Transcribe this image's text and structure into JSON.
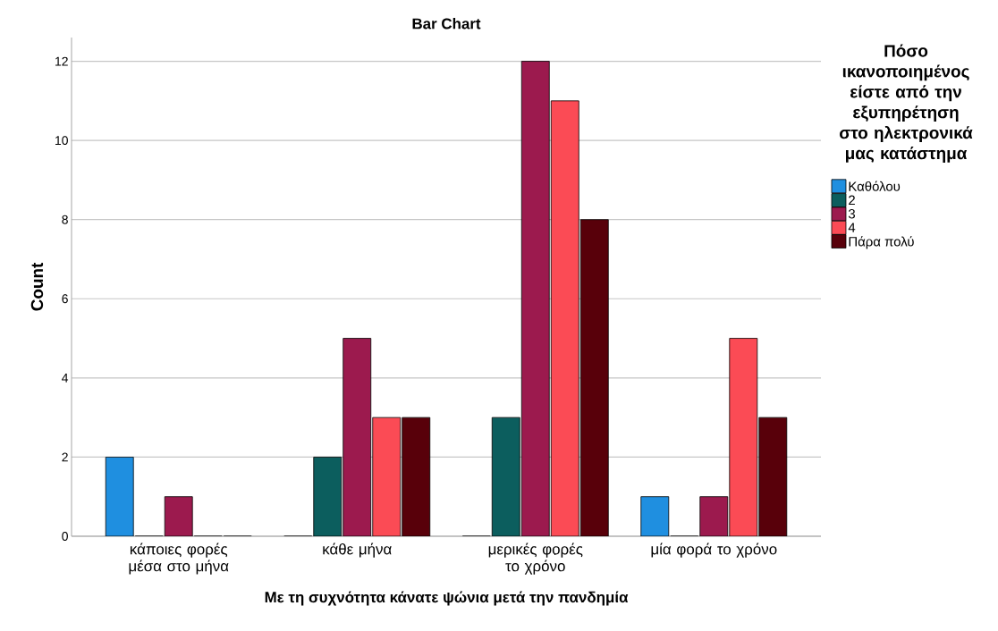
{
  "chart_data": {
    "type": "bar",
    "title": "Bar Chart",
    "xlabel": "Με τη συχνότητα κάνατε ψώνια μετά την πανδημία",
    "ylabel": "Count",
    "legend_title": "Πόσο ικανοποιημένος είστε από την εξυπηρέτηση στο ηλεκτρονικά μας κατάστημα",
    "categories": [
      "κάποιες φορές μέσα στο μήνα",
      "κάθε μήνα",
      "μερικές φορές το χρόνο",
      "μία φορά το χρόνο"
    ],
    "series": [
      {
        "name": "Καθόλου",
        "color": "#1f8fe0",
        "values": [
          2,
          0,
          0,
          1
        ]
      },
      {
        "name": "2",
        "color": "#0c5e5e",
        "values": [
          0,
          2,
          3,
          0
        ]
      },
      {
        "name": "3",
        "color": "#9c1a4e",
        "values": [
          1,
          5,
          12,
          1
        ]
      },
      {
        "name": "4",
        "color": "#fb4b55",
        "values": [
          0,
          3,
          11,
          5
        ]
      },
      {
        "name": "Πάρα πολύ",
        "color": "#58000a",
        "values": [
          0,
          3,
          8,
          3
        ]
      }
    ],
    "ylim": [
      0,
      12.6
    ],
    "yticks": [
      0,
      2,
      4,
      6,
      8,
      10,
      12
    ],
    "grid": "y",
    "legend": "right"
  }
}
